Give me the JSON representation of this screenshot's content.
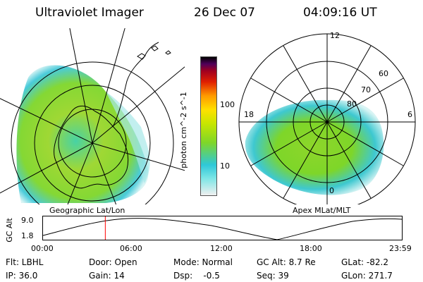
{
  "header": {
    "instrument": "Ultraviolet Imager",
    "date": "26 Dec 07",
    "time": "04:09:16 UT"
  },
  "geo_panel": {
    "label": "Geographic Lat/Lon"
  },
  "mag_panel": {
    "label": "Apex  MLat/MLT",
    "mlt_labels": {
      "top": "12",
      "left": "18",
      "right": "6",
      "bottom": "0"
    },
    "lat_labels": [
      "60",
      "70",
      "80"
    ]
  },
  "colorbar": {
    "unit_label": "photon cm^-2 s^-1",
    "ticks": [
      "100",
      "10"
    ],
    "colors": [
      "#f0f0f0",
      "#7fe6e6",
      "#2ec8d8",
      "#7ed629",
      "#c8e600",
      "#ffe000",
      "#ff9a00",
      "#e02000",
      "#a00020",
      "#50005a",
      "#000000"
    ]
  },
  "altitude_plot": {
    "ylabel": "GC Alt",
    "yticks": [
      "9.0",
      "1.8"
    ],
    "xticks": [
      "00:00",
      "06:00",
      "12:00",
      "18:00",
      "23:59"
    ],
    "current_time_fraction": 0.1736,
    "marker_color": "#ff0000"
  },
  "info": {
    "filter": "Flt: LBHL",
    "door": "Door: Open",
    "mode": "Mode: Normal",
    "gc_alt": "GC Alt: 8.7 Re",
    "glat": "GLat: -82.2",
    "ip": "IP: 36.0",
    "gain": "Gain: 14",
    "dsp": "Dsp:    -0.5",
    "seq": "Seq: 39",
    "glon": "GLon: 271.7"
  }
}
